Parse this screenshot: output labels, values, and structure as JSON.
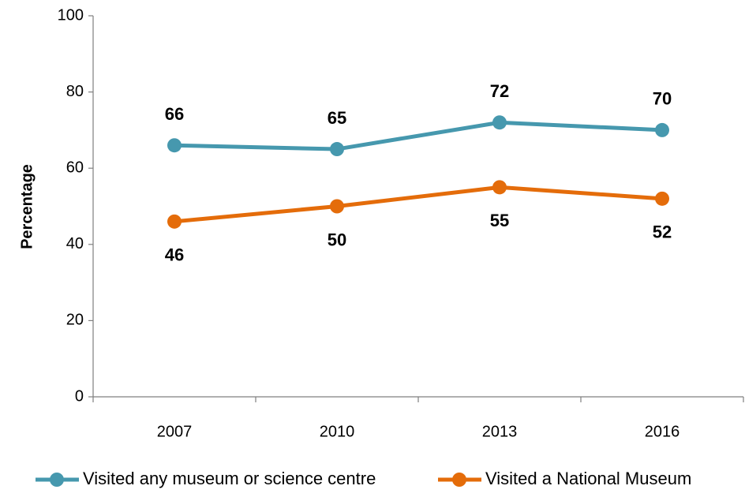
{
  "chart_data": {
    "type": "line",
    "y_label": "Percentage",
    "categories": [
      "2007",
      "2010",
      "2013",
      "2016"
    ],
    "series": [
      {
        "name": "Visited any museum or science centre",
        "color": "#4698ae",
        "values": [
          66,
          65,
          72,
          70
        ]
      },
      {
        "name": "Visited a National Museum",
        "color": "#e46c0a",
        "values": [
          46,
          50,
          55,
          52
        ]
      }
    ],
    "ylim": [
      0,
      100
    ],
    "yticks": [
      0,
      20,
      40,
      60,
      80,
      100
    ],
    "grid": false,
    "legend": "bottom"
  }
}
